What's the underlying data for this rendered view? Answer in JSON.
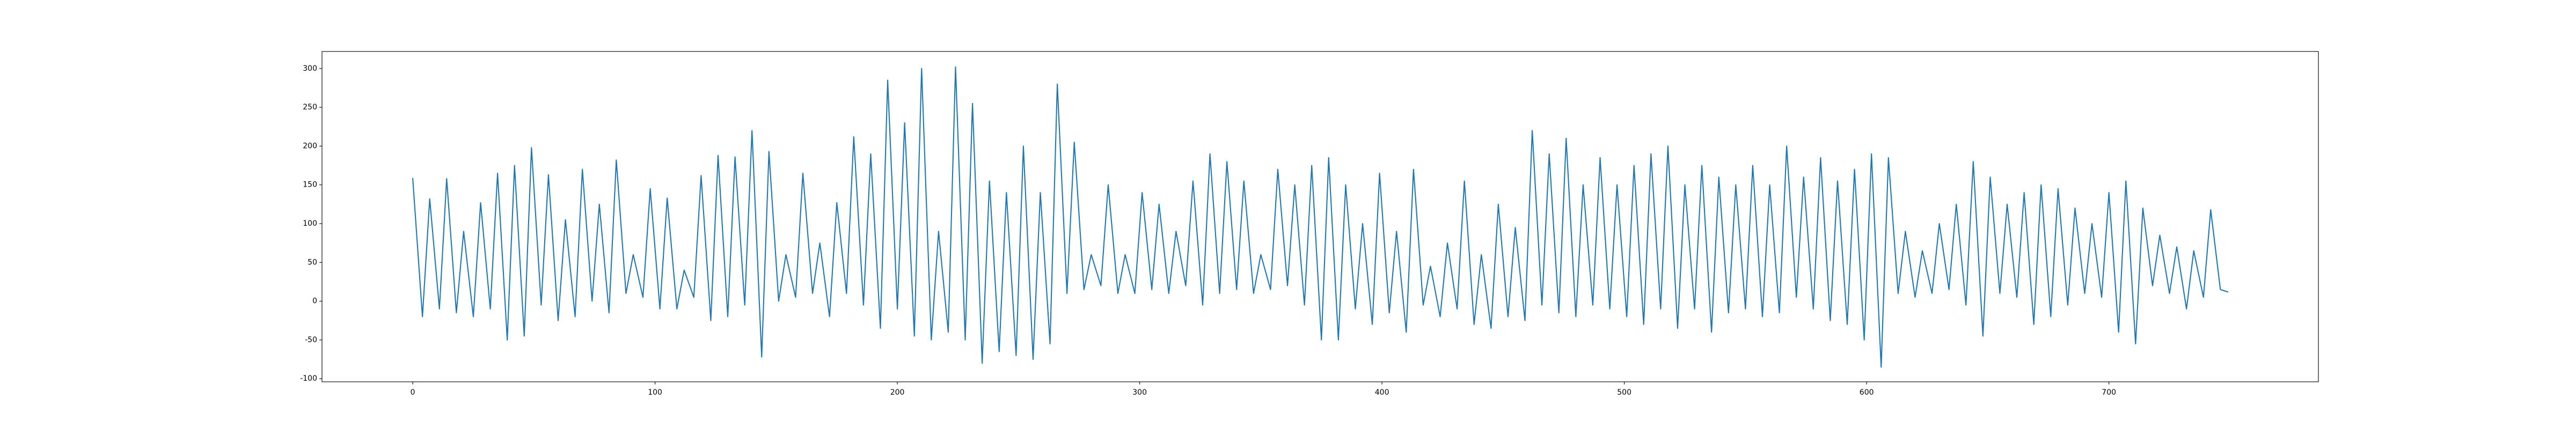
{
  "chart_data": {
    "type": "line",
    "color": "#1f77b4",
    "x": [
      0,
      4,
      7,
      11,
      14,
      18,
      21,
      25,
      28,
      32,
      35,
      39,
      42,
      46,
      49,
      53,
      56,
      60,
      63,
      67,
      70,
      74,
      77,
      81,
      84,
      88,
      91,
      95,
      98,
      102,
      105,
      109,
      112,
      116,
      119,
      123,
      126,
      130,
      133,
      137,
      140,
      144,
      147,
      151,
      154,
      158,
      161,
      165,
      168,
      172,
      175,
      179,
      182,
      186,
      189,
      193,
      196,
      200,
      203,
      207,
      210,
      214,
      217,
      221,
      224,
      228,
      231,
      235,
      238,
      242,
      245,
      249,
      252,
      256,
      259,
      263,
      266,
      270,
      273,
      277,
      280,
      284,
      287,
      291,
      294,
      298,
      301,
      305,
      308,
      312,
      315,
      319,
      322,
      326,
      329,
      333,
      336,
      340,
      343,
      347,
      350,
      354,
      357,
      361,
      364,
      368,
      371,
      375,
      378,
      382,
      385,
      389,
      392,
      396,
      399,
      403,
      406,
      410,
      413,
      417,
      420,
      424,
      427,
      431,
      434,
      438,
      441,
      445,
      448,
      452,
      455,
      459,
      462,
      466,
      469,
      473,
      476,
      480,
      483,
      487,
      490,
      494,
      497,
      501,
      504,
      508,
      511,
      515,
      518,
      522,
      525,
      529,
      532,
      536,
      539,
      543,
      546,
      550,
      553,
      557,
      560,
      564,
      567,
      571,
      574,
      578,
      581,
      585,
      588,
      592,
      595,
      599,
      602,
      606,
      609,
      613,
      616,
      620,
      623,
      627,
      630,
      634,
      637,
      641,
      644,
      648,
      651,
      655,
      658,
      662,
      665,
      669,
      672,
      676,
      679,
      683,
      686,
      690,
      693,
      697,
      700,
      704,
      707,
      711,
      714,
      718,
      721,
      725,
      728,
      732,
      735,
      739,
      742,
      746,
      749
    ],
    "values": [
      158,
      -20,
      132,
      -10,
      158,
      -15,
      90,
      -20,
      127,
      -10,
      165,
      -50,
      175,
      -45,
      198,
      -5,
      163,
      -25,
      105,
      -20,
      170,
      0,
      125,
      -15,
      182,
      10,
      60,
      5,
      145,
      -10,
      133,
      -10,
      40,
      5,
      162,
      -25,
      188,
      -20,
      186,
      -5,
      220,
      -72,
      193,
      0,
      60,
      5,
      165,
      10,
      75,
      -20,
      127,
      10,
      212,
      -5,
      190,
      -35,
      285,
      -10,
      230,
      -45,
      300,
      -50,
      90,
      -40,
      302,
      -50,
      255,
      -80,
      155,
      -65,
      140,
      -70,
      200,
      -75,
      140,
      -55,
      280,
      10,
      205,
      15,
      60,
      20,
      150,
      10,
      60,
      10,
      140,
      15,
      125,
      10,
      90,
      20,
      155,
      -5,
      190,
      10,
      180,
      15,
      155,
      10,
      60,
      15,
      170,
      20,
      150,
      -5,
      175,
      -50,
      185,
      -50,
      150,
      -10,
      100,
      -30,
      165,
      -15,
      90,
      -40,
      170,
      -5,
      45,
      -20,
      75,
      -10,
      155,
      -30,
      60,
      -35,
      125,
      -20,
      95,
      -25,
      220,
      -5,
      190,
      -15,
      210,
      -20,
      150,
      -5,
      185,
      -10,
      150,
      -20,
      175,
      -30,
      190,
      -10,
      200,
      -35,
      150,
      -10,
      175,
      -40,
      160,
      -15,
      150,
      -10,
      175,
      -20,
      150,
      -15,
      200,
      5,
      160,
      -10,
      185,
      -25,
      155,
      -30,
      170,
      -50,
      190,
      -85,
      185,
      10,
      90,
      5,
      65,
      10,
      100,
      15,
      125,
      -5,
      180,
      -45,
      160,
      10,
      125,
      5,
      140,
      -30,
      150,
      -20,
      145,
      -5,
      120,
      10,
      100,
      5,
      140,
      -40,
      155,
      -55,
      120,
      20,
      85,
      10,
      70,
      -10,
      65,
      5,
      118,
      15,
      12
    ],
    "xlim": [
      -37.45,
      786.45
    ],
    "ylim": [
      -104,
      322
    ],
    "xticks": [
      0,
      100,
      200,
      300,
      400,
      500,
      600,
      700
    ],
    "yticks": [
      -100,
      -50,
      0,
      50,
      100,
      150,
      200,
      250,
      300
    ]
  }
}
